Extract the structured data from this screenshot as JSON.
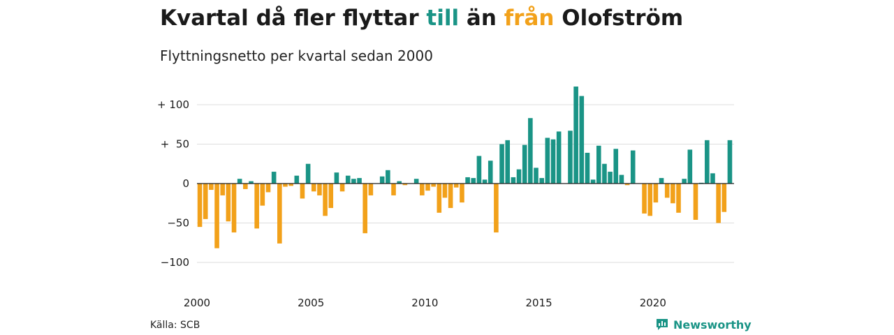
{
  "header": {
    "title_part1": "Kvartal då fler flyttar ",
    "title_pos": "till",
    "title_part2": " än ",
    "title_neg": "från",
    "title_part3": " Olofström",
    "subtitle": "Flyttningsnetto per kvartal sedan 2000"
  },
  "footer": {
    "source": "Källa: SCB",
    "brand": "Newsworthy"
  },
  "colors": {
    "positive": "#1a9486",
    "negative": "#f2a11a",
    "grid": "#dddddd",
    "baseline": "#222222"
  },
  "chart_data": {
    "type": "bar",
    "title": "Kvartal då fler flyttar till än från Olofström",
    "subtitle": "Flyttningsnetto per kvartal sedan 2000",
    "xlabel": "",
    "ylabel": "",
    "start_year": 2000,
    "quarters_per_year": 4,
    "ylim": [
      -120,
      125
    ],
    "y_ticks": [
      {
        "value": 100,
        "label": "+ 100"
      },
      {
        "value": 50,
        "label": "+  50"
      },
      {
        "value": 0,
        "label": "0"
      },
      {
        "value": -50,
        "label": "−50"
      },
      {
        "value": -100,
        "label": "−100"
      }
    ],
    "x_ticks": [
      {
        "value": 2000,
        "label": "2000"
      },
      {
        "value": 2005,
        "label": "2005"
      },
      {
        "value": 2010,
        "label": "2010"
      },
      {
        "value": 2015,
        "label": "2015"
      },
      {
        "value": 2020,
        "label": "2020"
      }
    ],
    "grid": true,
    "values": [
      -55,
      -45,
      -8,
      -82,
      -15,
      -48,
      -62,
      6,
      -7,
      3,
      -57,
      -28,
      -11,
      15,
      -76,
      -4,
      -3,
      10,
      -19,
      25,
      -10,
      -15,
      -41,
      -31,
      14,
      -10,
      10,
      6,
      7,
      -63,
      -15,
      0,
      9,
      17,
      -15,
      3,
      -2,
      0,
      6,
      -15,
      -9,
      -4,
      -37,
      -18,
      -31,
      -5,
      -24,
      8,
      7,
      35,
      5,
      29,
      -62,
      50,
      55,
      8,
      18,
      49,
      83,
      20,
      7,
      58,
      56,
      66,
      0,
      67,
      123,
      111,
      39,
      5,
      48,
      25,
      15,
      44,
      11,
      -2,
      42,
      0,
      -38,
      -41,
      -24,
      7,
      -18,
      -25,
      -37,
      6,
      43,
      -46,
      1,
      55,
      13,
      -50,
      -36,
      55
    ]
  }
}
